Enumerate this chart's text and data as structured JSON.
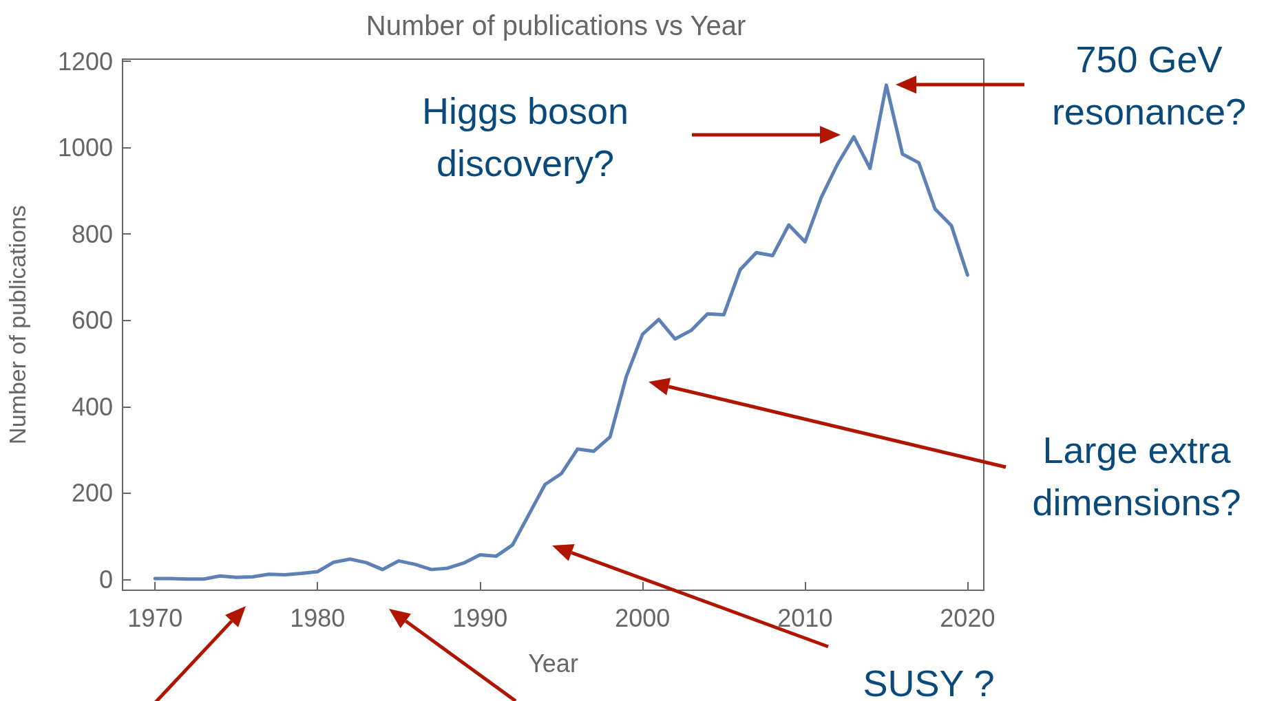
{
  "chart_data": {
    "type": "line",
    "title": "Number of publications vs Year",
    "xlabel": "Year",
    "ylabel": "Number of publications",
    "x": [
      1970,
      1971,
      1972,
      1973,
      1974,
      1975,
      1976,
      1977,
      1978,
      1979,
      1980,
      1981,
      1982,
      1983,
      1984,
      1985,
      1986,
      1987,
      1988,
      1989,
      1990,
      1991,
      1992,
      1993,
      1994,
      1995,
      1996,
      1997,
      1998,
      1999,
      2000,
      2001,
      2002,
      2003,
      2004,
      2005,
      2006,
      2007,
      2008,
      2009,
      2010,
      2011,
      2012,
      2013,
      2014,
      2015,
      2016,
      2017,
      2018,
      2019,
      2020
    ],
    "series": [
      {
        "color": "#5e81b5",
        "values": [
          2,
          2,
          1,
          1,
          8,
          5,
          6,
          12,
          11,
          14,
          18,
          40,
          47,
          39,
          23,
          43,
          35,
          23,
          26,
          38,
          57,
          54,
          80,
          150,
          220,
          245,
          302,
          297,
          330,
          470,
          568,
          602,
          557,
          577,
          615,
          613,
          717,
          757,
          750,
          821,
          782,
          885,
          962,
          1025,
          952,
          1145,
          985,
          965,
          858,
          820,
          705
        ]
      }
    ],
    "xlim": [
      1968,
      2021
    ],
    "xticks": [
      1970,
      1980,
      1990,
      2000,
      2010,
      2020
    ],
    "ylim": [
      -25,
      1205
    ],
    "yticks": [
      0,
      200,
      400,
      600,
      800,
      1000,
      1200
    ],
    "marker": "none",
    "line_style": "solid",
    "annotations": [
      "Higgs boson\ndiscovery?",
      "750 GeV\nresonance?",
      "Large extra\ndimensions?",
      "SUSY ?"
    ]
  }
}
